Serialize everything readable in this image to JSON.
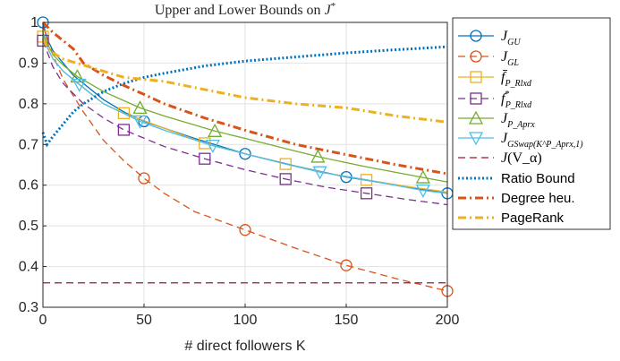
{
  "chart_data": {
    "type": "line",
    "title": "Upper and Lower Bounds on J*",
    "xlabel": "# direct followers K",
    "ylabel": "",
    "xlim": [
      0,
      200
    ],
    "ylim": [
      0.3,
      1.0
    ],
    "xticks": [
      "0",
      "50",
      "100",
      "150",
      "200"
    ],
    "yticks": [
      "0.3",
      "0.4",
      "0.5",
      "0.6",
      "0.7",
      "0.8",
      "0.9",
      "1"
    ],
    "grid": true,
    "legend_position": "right, outside plot",
    "series": [
      {
        "name": "J_GU",
        "color": "#0072BD",
        "dash": "solid",
        "marker": "circle",
        "x": [
          0,
          2,
          5,
          10,
          15,
          20,
          30,
          40,
          50,
          60,
          75,
          100,
          125,
          150,
          175,
          200
        ],
        "y": [
          1.0,
          0.96,
          0.93,
          0.9,
          0.87,
          0.85,
          0.81,
          0.78,
          0.757,
          0.74,
          0.715,
          0.677,
          0.647,
          0.62,
          0.6,
          0.58
        ],
        "markers": [
          [
            0,
            1.0
          ],
          [
            50,
            0.757
          ],
          [
            100,
            0.677
          ],
          [
            150,
            0.62
          ],
          [
            200,
            0.58
          ]
        ]
      },
      {
        "name": "J_GL",
        "color": "#D95319",
        "dash": "dashed",
        "marker": "circle",
        "x": [
          0,
          5,
          10,
          20,
          30,
          40,
          50,
          60,
          75,
          100,
          125,
          150,
          175,
          200
        ],
        "y": [
          0.99,
          0.92,
          0.86,
          0.78,
          0.71,
          0.66,
          0.617,
          0.58,
          0.535,
          0.49,
          0.445,
          0.403,
          0.37,
          0.34
        ],
        "markers": [
          [
            50,
            0.617
          ],
          [
            100,
            0.49
          ],
          [
            150,
            0.403
          ],
          [
            200,
            0.34
          ]
        ]
      },
      {
        "name": "f̄_P_Rlxd",
        "color": "#EDB120",
        "dash": "solid",
        "marker": "square",
        "x": [
          0,
          2,
          5,
          10,
          20,
          30,
          40,
          60,
          80,
          100,
          120,
          140,
          160,
          180,
          200
        ],
        "y": [
          0.965,
          0.94,
          0.91,
          0.88,
          0.84,
          0.8,
          0.777,
          0.74,
          0.703,
          0.677,
          0.652,
          0.63,
          0.613,
          0.597,
          0.583
        ],
        "markers": [
          [
            0,
            0.965
          ],
          [
            40,
            0.777
          ],
          [
            80,
            0.703
          ],
          [
            120,
            0.652
          ],
          [
            160,
            0.613
          ]
        ]
      },
      {
        "name": "f*_P_Rlxd",
        "color": "#7E2F8E",
        "dash": "dashed",
        "marker": "square",
        "x": [
          0,
          5,
          10,
          20,
          30,
          40,
          60,
          80,
          100,
          120,
          140,
          160,
          180,
          200
        ],
        "y": [
          0.955,
          0.89,
          0.85,
          0.8,
          0.765,
          0.736,
          0.695,
          0.665,
          0.638,
          0.615,
          0.595,
          0.58,
          0.565,
          0.552
        ],
        "markers": [
          [
            0,
            0.955
          ],
          [
            40,
            0.736
          ],
          [
            80,
            0.665
          ],
          [
            120,
            0.615
          ],
          [
            160,
            0.58
          ]
        ]
      },
      {
        "name": "J_P_Aprx",
        "color": "#77AC30",
        "dash": "solid",
        "marker": "triangle-up",
        "x": [
          0,
          2,
          5,
          10,
          17,
          30,
          48,
          60,
          85,
          100,
          120,
          136,
          160,
          188,
          200
        ],
        "y": [
          0.975,
          0.95,
          0.92,
          0.895,
          0.867,
          0.83,
          0.79,
          0.77,
          0.733,
          0.715,
          0.69,
          0.67,
          0.645,
          0.619,
          0.608
        ],
        "markers": [
          [
            17,
            0.867
          ],
          [
            48,
            0.79
          ],
          [
            85,
            0.733
          ],
          [
            136,
            0.67
          ],
          [
            188,
            0.619
          ]
        ]
      },
      {
        "name": "J_GSwap(K^P_Aprx,1)",
        "color": "#4DBEEE",
        "dash": "solid",
        "marker": "triangle-down",
        "x": [
          0,
          2,
          5,
          10,
          18,
          30,
          48,
          60,
          84,
          100,
          120,
          137,
          160,
          188,
          200
        ],
        "y": [
          0.97,
          0.94,
          0.91,
          0.88,
          0.847,
          0.8,
          0.757,
          0.735,
          0.697,
          0.677,
          0.652,
          0.632,
          0.613,
          0.587,
          0.58
        ],
        "markers": [
          [
            18,
            0.847
          ],
          [
            48,
            0.757
          ],
          [
            84,
            0.697
          ],
          [
            137,
            0.632
          ],
          [
            188,
            0.587
          ]
        ]
      },
      {
        "name": "J(V_α)",
        "color": "#A2142F",
        "dash": "dashed",
        "marker": "none",
        "x": [
          0,
          200
        ],
        "y": [
          0.36,
          0.36
        ]
      },
      {
        "name": "Ratio Bound",
        "color": "#0072BD",
        "dash": "dotted",
        "marker": "none",
        "x": [
          0,
          2,
          5,
          10,
          15,
          20,
          30,
          40,
          50,
          60,
          80,
          100,
          125,
          150,
          175,
          200
        ],
        "y": [
          0.73,
          0.7,
          0.72,
          0.75,
          0.78,
          0.8,
          0.83,
          0.85,
          0.865,
          0.875,
          0.893,
          0.905,
          0.915,
          0.925,
          0.933,
          0.94
        ]
      },
      {
        "name": "Degree heu.",
        "color": "#D95319",
        "dash": "dashdot",
        "marker": "none",
        "x": [
          0,
          2,
          5,
          10,
          15,
          20,
          30,
          40,
          50,
          60,
          80,
          100,
          125,
          150,
          175,
          200
        ],
        "y": [
          1.0,
          0.99,
          0.975,
          0.955,
          0.935,
          0.9,
          0.87,
          0.845,
          0.823,
          0.8,
          0.765,
          0.735,
          0.7,
          0.675,
          0.65,
          0.628
        ]
      },
      {
        "name": "PageRank",
        "color": "#EDB120",
        "dash": "dashdot",
        "marker": "none",
        "x": [
          0,
          2,
          5,
          10,
          20,
          30,
          40,
          50,
          60,
          80,
          100,
          125,
          150,
          175,
          200
        ],
        "y": [
          0.96,
          0.94,
          0.925,
          0.91,
          0.895,
          0.88,
          0.865,
          0.86,
          0.855,
          0.835,
          0.815,
          0.8,
          0.79,
          0.77,
          0.755
        ]
      }
    ]
  }
}
